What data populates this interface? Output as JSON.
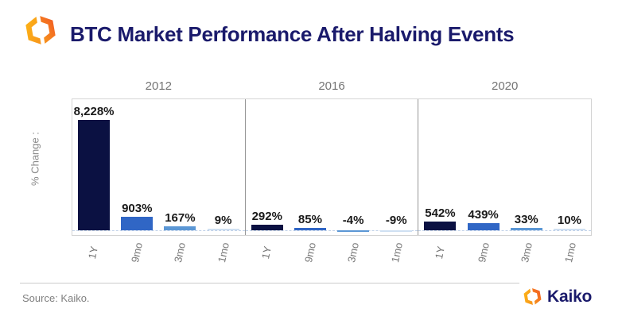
{
  "header": {
    "title": "BTC Market Performance After Halving Events",
    "logo_icon": "kaiko-logo-icon"
  },
  "chart_data": {
    "type": "bar",
    "title": "BTC Market Performance After Halving Events",
    "ylabel": "% Change :",
    "xlabel": "",
    "categories": [
      "1Y",
      "9mo",
      "3mo",
      "1mo"
    ],
    "panels": [
      {
        "year": "2012",
        "values": [
          8228,
          903,
          167,
          9
        ],
        "labels": [
          "8,228%",
          "903%",
          "167%",
          "9%"
        ]
      },
      {
        "year": "2016",
        "values": [
          292,
          85,
          -4,
          -9
        ],
        "labels": [
          "292%",
          "85%",
          "-4%",
          "-9%"
        ]
      },
      {
        "year": "2020",
        "values": [
          542,
          439,
          33,
          10
        ],
        "labels": [
          "542%",
          "439%",
          "33%",
          "10%"
        ]
      }
    ],
    "bar_colors": [
      "#0b1142",
      "#3066c5",
      "#5b97d5",
      "#cfe0f2"
    ],
    "ylim": [
      -9,
      8228
    ],
    "grid": false,
    "legend": "none",
    "zero_line": "dashed"
  },
  "footer": {
    "source": "Source: Kaiko.",
    "brand": "Kaiko",
    "brand_icon": "kaiko-logo-icon"
  },
  "colors": {
    "title_navy": "#1a1a6b",
    "brand_orange": "#f7941d",
    "axis_grey": "#757575",
    "panel_border": "#d4d4d4",
    "panel_divider": "#979797",
    "zero_line": "#bfd0e8",
    "label_black": "#1a1a1a"
  }
}
